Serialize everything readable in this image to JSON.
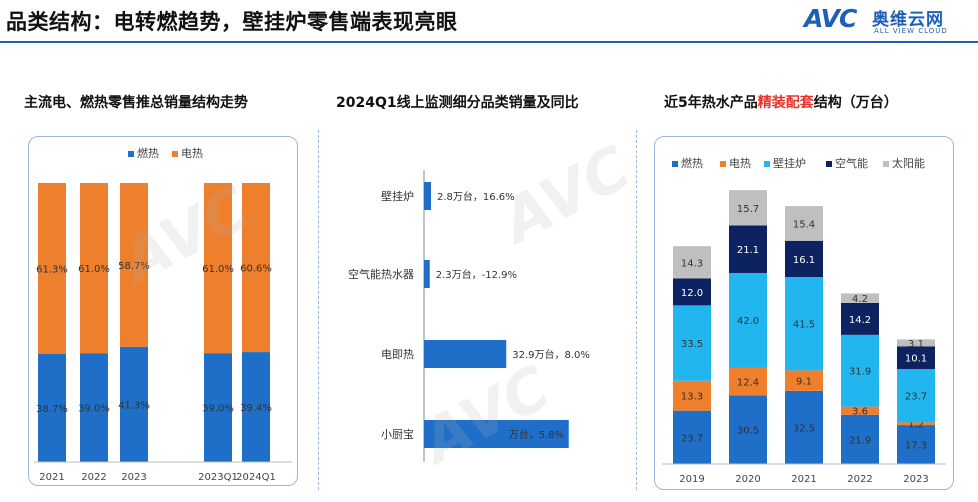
{
  "header": {
    "title": "品类结构：电转燃趋势，壁挂炉零售端表现亮眼",
    "logo_mark": "AVC",
    "logo_cn": "奥维云网",
    "logo_en": "ALL VIEW CLOUD"
  },
  "colors": {
    "blue": "#1f6fc9",
    "orange": "#ee7f2d",
    "cyan": "#22b6f0",
    "navy": "#0d2260",
    "gray": "#bfbfbf",
    "accent": "#1f5fb8",
    "highlight": "#e8322b"
  },
  "panels": {
    "left_title": "主流电、燃热零售推总销量结构走势",
    "middle_title": "2024Q1线上监测细分品类销量及同比",
    "right_title_pre": "近5年热水产品",
    "right_title_highlight": "精装配套",
    "right_title_post": "结构（万台）"
  },
  "chart_data": [
    {
      "type": "bar",
      "stacked": true,
      "percent": true,
      "categories": [
        "2021",
        "2022",
        "2023",
        "2023Q1",
        "2024Q1"
      ],
      "series": [
        {
          "name": "燃热",
          "values": [
            38.7,
            39.0,
            41.3,
            39.0,
            39.4
          ],
          "labels": [
            "38.7%",
            "39.0%",
            "41.3%",
            "39.0%",
            "39.4%"
          ],
          "color": "#1f6fc9"
        },
        {
          "name": "电热",
          "values": [
            61.3,
            61.0,
            58.7,
            61.0,
            60.6
          ],
          "labels": [
            "61.3%",
            "61.0%",
            "58.7%",
            "61.0%",
            "60.6%"
          ],
          "color": "#ee7f2d"
        }
      ],
      "legend": "top-center",
      "ylim": [
        0,
        100
      ]
    },
    {
      "type": "bar",
      "orientation": "horizontal",
      "categories": [
        "壁挂炉",
        "空气能热水器",
        "电即热",
        "小厨宝"
      ],
      "values": [
        2.8,
        2.3,
        32.9,
        57.9
      ],
      "labels": [
        "2.8万台，16.6%",
        "2.3万台，-12.9%",
        "32.9万台，8.0%",
        "万台，5.8%"
      ],
      "color": "#1f6fc9",
      "xlim": [
        0,
        80
      ]
    },
    {
      "type": "bar",
      "stacked": true,
      "categories": [
        "2019",
        "2020",
        "2021",
        "2022",
        "2023"
      ],
      "series": [
        {
          "name": "燃热",
          "values": [
            23.7,
            30.5,
            32.5,
            21.9,
            17.3
          ],
          "labels": [
            "23.7",
            "30.5",
            "32.5",
            "21.9",
            "17.3"
          ],
          "color": "#1f6fc9"
        },
        {
          "name": "电热",
          "values": [
            13.3,
            12.4,
            9.1,
            3.6,
            1.2
          ],
          "labels": [
            "13.3",
            "12.4",
            "9.1",
            "3.6",
            "1.2"
          ],
          "color": "#ee7f2d"
        },
        {
          "name": "壁挂炉",
          "values": [
            33.5,
            42.0,
            41.5,
            31.9,
            23.7
          ],
          "labels": [
            "33.5",
            "42.0",
            "41.5",
            "31.9",
            "23.7"
          ],
          "color": "#22b6f0"
        },
        {
          "name": "空气能",
          "values": [
            12.0,
            21.1,
            16.1,
            14.2,
            10.1
          ],
          "labels": [
            "12.0",
            "21.1",
            "16.1",
            "14.2",
            "10.1"
          ],
          "color": "#0d2260"
        },
        {
          "name": "太阳能",
          "values": [
            14.3,
            15.7,
            15.4,
            4.2,
            3.1
          ],
          "labels": [
            "14.3",
            "15.7",
            "15.4",
            "4.2",
            "3.1"
          ],
          "color": "#bfbfbf"
        }
      ],
      "legend": "top",
      "ylim": [
        0,
        125
      ]
    }
  ]
}
